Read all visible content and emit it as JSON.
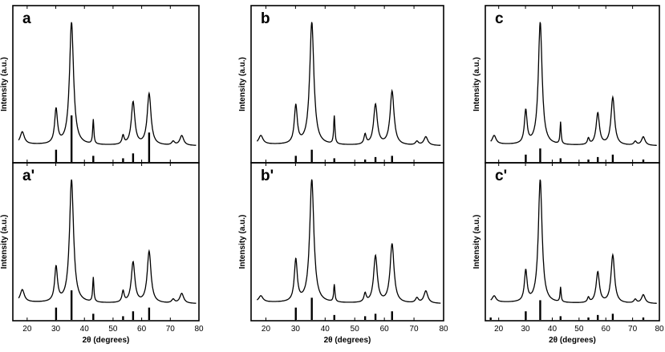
{
  "chart_data": {
    "type": "line",
    "title": "",
    "xlabel": "2θ (degrees)",
    "ylabel": "Intensity (a.u.)",
    "xlim": [
      15,
      80
    ],
    "x_ticks": [
      20,
      30,
      40,
      50,
      60,
      70,
      80
    ],
    "peaks_2theta": [
      18.3,
      30.1,
      35.5,
      43.1,
      53.5,
      57.0,
      62.6,
      71.0,
      74.0
    ],
    "panels": [
      {
        "label": "a",
        "intensities": [
          0.1,
          0.28,
          1.0,
          0.2,
          0.07,
          0.35,
          0.42,
          0.03,
          0.08
        ],
        "reference_bars": {
          "positions": [
            30.1,
            35.5,
            43.1,
            53.5,
            57.0,
            62.6
          ],
          "heights": [
            0.1,
            0.38,
            0.05,
            0.03,
            0.07,
            0.24
          ]
        }
      },
      {
        "label": "a'",
        "intensities": [
          0.1,
          0.28,
          1.0,
          0.2,
          0.09,
          0.33,
          0.42,
          0.03,
          0.08
        ],
        "reference_bars": {
          "positions": [
            30.1,
            35.5,
            43.1,
            53.5,
            57.0,
            62.6
          ],
          "heights": [
            0.1,
            0.24,
            0.05,
            0.03,
            0.07,
            0.1
          ]
        }
      },
      {
        "label": "b",
        "intensities": [
          0.07,
          0.31,
          1.0,
          0.23,
          0.08,
          0.33,
          0.44,
          0.03,
          0.07
        ],
        "reference_bars": {
          "positions": [
            30.1,
            35.5,
            43.1,
            53.5,
            57.0,
            62.6
          ],
          "heights": [
            0.05,
            0.1,
            0.03,
            0.02,
            0.04,
            0.05
          ]
        }
      },
      {
        "label": "b'",
        "intensities": [
          0.05,
          0.34,
          1.0,
          0.14,
          0.07,
          0.38,
          0.48,
          0.04,
          0.1
        ],
        "reference_bars": {
          "positions": [
            30.1,
            35.5,
            43.1,
            53.5,
            57.0,
            62.6
          ],
          "heights": [
            0.1,
            0.18,
            0.04,
            0.03,
            0.05,
            0.07
          ]
        }
      },
      {
        "label": "c",
        "intensities": [
          0.07,
          0.27,
          1.0,
          0.18,
          0.05,
          0.26,
          0.39,
          0.03,
          0.07
        ],
        "reference_bars": {
          "positions": [
            30.1,
            35.5,
            43.1,
            53.5,
            57.0,
            62.6,
            74.0
          ],
          "heights": [
            0.06,
            0.11,
            0.03,
            0.02,
            0.04,
            0.06,
            0.02
          ]
        }
      },
      {
        "label": "c'",
        "intensities": [
          0.05,
          0.25,
          1.0,
          0.12,
          0.04,
          0.25,
          0.39,
          0.03,
          0.07
        ],
        "reference_bars": {
          "positions": [
            17.0,
            30.1,
            35.5,
            43.1,
            53.5,
            57.0,
            62.6,
            74.0
          ],
          "heights": [
            0.02,
            0.07,
            0.16,
            0.03,
            0.02,
            0.04,
            0.05,
            0.02
          ]
        }
      }
    ]
  }
}
